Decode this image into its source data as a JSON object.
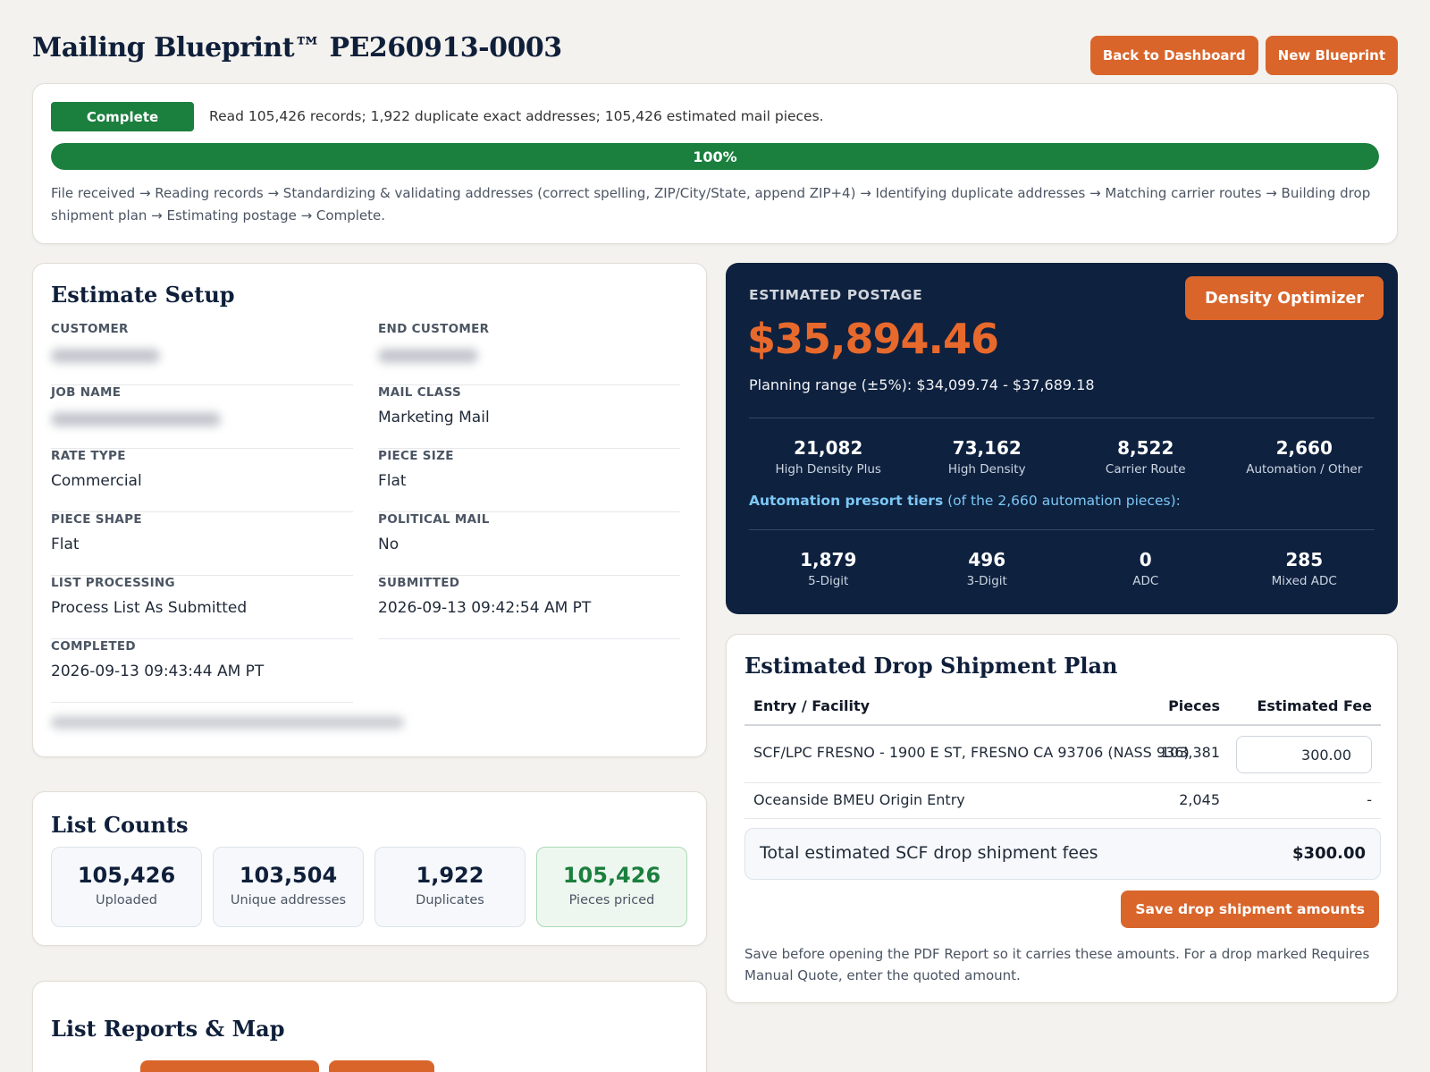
{
  "header": {
    "title": "Mailing Blueprint™ PE260913-0003",
    "back_label": "Back to Dashboard",
    "new_label": "New Blueprint"
  },
  "status": {
    "badge": "Complete",
    "summary": "Read 105,426 records; 1,922 duplicate exact addresses; 105,426 estimated mail pieces.",
    "progress_label": "100%",
    "progress_value": 1.0,
    "steps": "File received → Reading records → Standardizing & validating addresses (correct spelling, ZIP/City/State, append ZIP+4) → Identifying duplicate addresses → Matching carrier routes → Building drop shipment plan → Estimating postage → Complete.",
    "badge_color": "#1b7f3e"
  },
  "setup": {
    "title": "Estimate Setup",
    "fields": {
      "customer": {
        "label": "CUSTOMER"
      },
      "end_customer": {
        "label": "END CUSTOMER"
      },
      "job_name": {
        "label": "JOB NAME"
      },
      "mail_class": {
        "label": "MAIL CLASS",
        "value": "Marketing Mail"
      },
      "rate_type": {
        "label": "RATE TYPE",
        "value": "Commercial"
      },
      "piece_size": {
        "label": "PIECE SIZE",
        "value": "Flat"
      },
      "piece_shape": {
        "label": "PIECE SHAPE",
        "value": "Flat"
      },
      "political_mail": {
        "label": "POLITICAL MAIL",
        "value": "No"
      },
      "list_processing": {
        "label": "LIST PROCESSING",
        "value": "Process List As Submitted"
      },
      "submitted": {
        "label": "SUBMITTED",
        "value": "2026-09-13 09:42:54 AM PT"
      },
      "completed": {
        "label": "COMPLETED",
        "value": "2026-09-13 09:43:44 AM PT"
      }
    }
  },
  "postage": {
    "label": "ESTIMATED POSTAGE",
    "amount": "$35,894.46",
    "range": "Planning range (±5%): $34,099.74 - $37,689.18",
    "optimizer_label": "Density Optimizer",
    "tiers": [
      {
        "value": "21,082",
        "caption": "High Density Plus"
      },
      {
        "value": "73,162",
        "caption": "High Density"
      },
      {
        "value": "8,522",
        "caption": "Carrier Route"
      },
      {
        "value": "2,660",
        "caption": "Automation / Other"
      }
    ],
    "presort_bold": "Automation presort tiers",
    "presort_rest": " (of the 2,660 automation pieces):",
    "presort": [
      {
        "value": "1,879",
        "caption": "5-Digit"
      },
      {
        "value": "496",
        "caption": "3-Digit"
      },
      {
        "value": "0",
        "caption": "ADC"
      },
      {
        "value": "285",
        "caption": "Mixed ADC"
      }
    ],
    "accent_color": "#e8692c",
    "bg_color": "#0e213f"
  },
  "counts": {
    "title": "List Counts",
    "items": [
      {
        "value": "105,426",
        "caption": "Uploaded"
      },
      {
        "value": "103,504",
        "caption": "Unique addresses"
      },
      {
        "value": "1,922",
        "caption": "Duplicates"
      },
      {
        "value": "105,426",
        "caption": "Pieces priced"
      }
    ]
  },
  "reports": {
    "title": "List Reports & Map"
  },
  "drop": {
    "title": "Estimated Drop Shipment Plan",
    "columns": [
      "Entry / Facility",
      "Pieces",
      "Estimated Fee"
    ],
    "rows": [
      {
        "facility": "SCF/LPC FRESNO - 1900 E ST, FRESNO CA 93706 (NASS 936)",
        "pieces": "103,381",
        "fee": "300.00"
      },
      {
        "facility": "Oceanside BMEU Origin Entry",
        "pieces": "2,045",
        "fee": "-"
      }
    ],
    "total_label": "Total estimated SCF drop shipment fees",
    "total_value": "$300.00",
    "save_label": "Save drop shipment amounts",
    "note": "Save before opening the PDF Report so it carries these amounts. For a drop marked Requires Manual Quote, enter the quoted amount."
  }
}
